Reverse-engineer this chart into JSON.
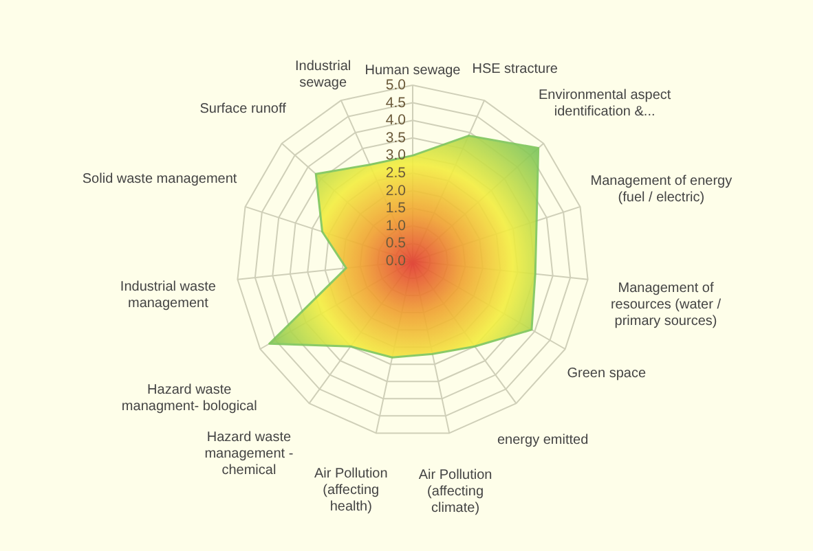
{
  "chart_data": {
    "type": "radar",
    "categories": [
      "Human sewage",
      "HSE stracture",
      "Environmental aspect identification &...",
      "Management of energy (fuel / electric)",
      "Management of resources (water / primary sources)",
      "Green space",
      "energy emitted",
      "Air Pollution (affecting climate)",
      "Air Pollution (affecting health)",
      "Hazard waste management - chemical",
      "Hazard waste managment- bological",
      "Industrial waste management",
      "Solid waste management",
      "Surface runoff",
      "Industrial sewage"
    ],
    "series": [
      {
        "color": "#7dc55a",
        "values": [
          3.0,
          3.9,
          4.8,
          3.7,
          3.5,
          3.9,
          3.0,
          2.7,
          2.8,
          3.0,
          4.7,
          1.9,
          2.7,
          3.7,
          3.0
        ]
      }
    ],
    "ylim": [
      0,
      5
    ],
    "yticks": [
      {
        "value": 0,
        "label": "0.0"
      },
      {
        "value": 0.5,
        "label": "0.5"
      },
      {
        "value": 1,
        "label": "1.0"
      },
      {
        "value": 1.5,
        "label": "1.5"
      },
      {
        "value": 2,
        "label": "2.0"
      },
      {
        "value": 2.5,
        "label": "2.5"
      },
      {
        "value": 3,
        "label": "3.0"
      },
      {
        "value": 3.5,
        "label": "3.5"
      },
      {
        "value": 4,
        "label": "4.0"
      },
      {
        "value": 4.5,
        "label": "4.5"
      },
      {
        "value": 5,
        "label": "5.0"
      }
    ],
    "grid": true
  }
}
